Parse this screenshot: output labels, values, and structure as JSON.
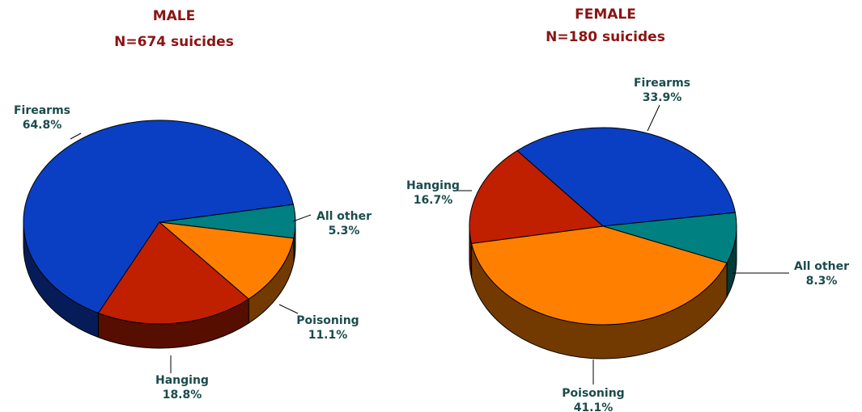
{
  "chart_data": [
    {
      "type": "pie",
      "title": "MALE",
      "subtitle": "N=674 suicides",
      "categories": [
        "Firearms",
        "All other",
        "Poisoning",
        "Hanging"
      ],
      "values": [
        64.8,
        5.3,
        11.1,
        18.8
      ],
      "value_labels": [
        "64.8%",
        "5.3%",
        "11.1%",
        "18.8%"
      ],
      "colors": [
        "#0a3fc4",
        "#008080",
        "#ff8000",
        "#c02000"
      ]
    },
    {
      "type": "pie",
      "title": "FEMALE",
      "subtitle": "N=180 suicides",
      "categories": [
        "Firearms",
        "All other",
        "Poisoning",
        "Hanging"
      ],
      "values": [
        33.9,
        8.3,
        41.1,
        16.7
      ],
      "value_labels": [
        "33.9%",
        "8.3%",
        "41.1%",
        "16.7%"
      ],
      "colors": [
        "#0a3fc4",
        "#008080",
        "#ff8000",
        "#c02000"
      ]
    }
  ]
}
